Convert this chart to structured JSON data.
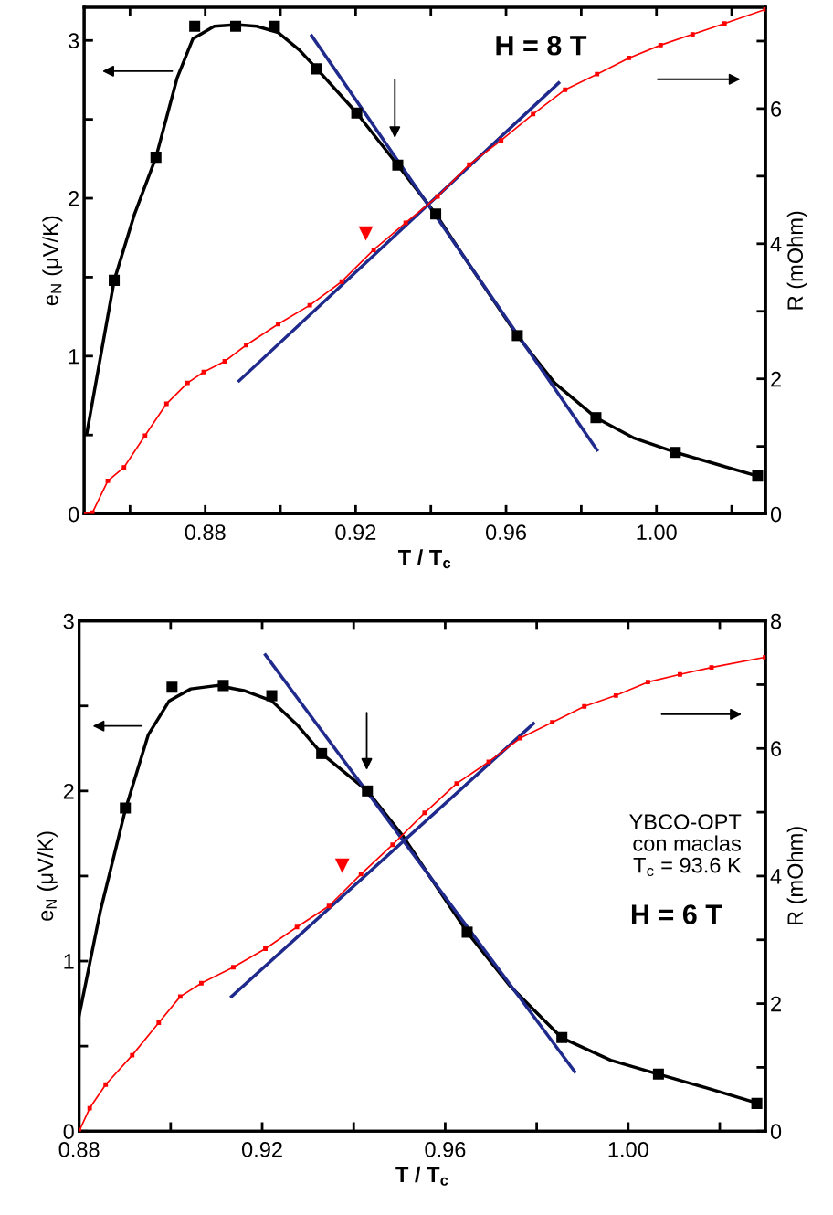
{
  "chart_data": [
    {
      "type": "line",
      "xlabel": "T / T$_{c}$",
      "ylabel": "e$_{N}$ (μV/K)",
      "y2label": "R (mOhm)",
      "annotations": [
        "H = 8 T"
      ],
      "xlim": [
        0.8478,
        1.029
      ],
      "ylim": [
        0,
        3.21
      ],
      "y2lim": [
        0,
        7.5
      ],
      "xticks": [
        {
          "value": 0.86,
          "label": null
        },
        {
          "value": 0.88,
          "label": "0.88"
        },
        {
          "value": 0.9,
          "label": null
        },
        {
          "value": 0.92,
          "label": "0.92"
        },
        {
          "value": 0.94,
          "label": null
        },
        {
          "value": 0.96,
          "label": "0.96"
        },
        {
          "value": 0.98,
          "label": null
        },
        {
          "value": 1.0,
          "label": "1.00"
        },
        {
          "value": 1.02,
          "label": null
        }
      ],
      "yticks": [
        0,
        {
          "value": 0.5,
          "label": null
        },
        1,
        {
          "value": 1.5,
          "label": null
        },
        2,
        {
          "value": 2.5,
          "label": null
        },
        3
      ],
      "y2ticks": [
        0,
        {
          "value": 1,
          "label": null
        },
        2,
        {
          "value": 3,
          "label": null
        },
        4,
        {
          "value": 5,
          "label": null
        },
        6,
        {
          "value": 7,
          "label": null
        }
      ],
      "series": [
        {
          "type": "scatter",
          "marker": "square",
          "color": "#000000",
          "x": [
            0.8558,
            0.8669,
            0.8772,
            0.8881,
            0.8984,
            0.9097,
            0.9203,
            0.9312,
            0.9413,
            0.963,
            0.9839,
            1.005,
            1.0269
          ],
          "values": [
            1.48,
            2.26,
            3.09,
            3.09,
            3.09,
            2.82,
            2.54,
            2.21,
            1.9,
            1.13,
            0.61,
            0.39,
            0.24
          ]
        },
        {
          "marker": "none",
          "color": "#000000",
          "x": [
            0.8485,
            0.8558,
            0.8612,
            0.8669,
            0.8725,
            0.8767,
            0.8824,
            0.8881,
            0.8937,
            0.8994,
            0.905,
            0.9097,
            0.9203,
            0.9312,
            0.9413,
            0.9502,
            0.963,
            0.9729,
            0.9839,
            0.9941,
            1.0051,
            1.0167,
            1.0269
          ],
          "values": [
            0.51,
            1.48,
            1.9,
            2.26,
            2.76,
            3.01,
            3.09,
            3.1,
            3.09,
            3.05,
            2.94,
            2.82,
            2.54,
            2.21,
            1.9,
            1.58,
            1.13,
            0.83,
            0.61,
            0.48,
            0.39,
            0.31,
            0.24
          ]
        },
        {
          "marker": "square",
          "color": "#ff0000",
          "axis": "y2",
          "x": [
            0.8478,
            0.85,
            0.8541,
            0.8584,
            0.864,
            0.8697,
            0.8753,
            0.8796,
            0.8852,
            0.8909,
            0.8994,
            0.9078,
            0.9163,
            0.9248,
            0.9333,
            0.9418,
            0.9502,
            0.9587,
            0.9672,
            0.9757,
            0.9842,
            0.9927,
            1.0011,
            1.0096,
            1.0181,
            1.029
          ],
          "values": [
            0,
            0.02,
            0.49,
            0.69,
            1.16,
            1.63,
            1.94,
            2.1,
            2.26,
            2.5,
            2.81,
            3.09,
            3.44,
            3.91,
            4.31,
            4.7,
            5.17,
            5.53,
            5.92,
            6.28,
            6.51,
            6.75,
            6.94,
            7.1,
            7.26,
            7.47
          ]
        },
        {
          "marker": "none",
          "color": "#1f2a8c",
          "x": [
            0.9083,
            0.9842
          ],
          "values": [
            3.03,
            0.405
          ]
        },
        {
          "marker": "none",
          "color": "#1f2a8c",
          "axis": "y2",
          "x": [
            0.889,
            0.974
          ],
          "values": [
            1.97,
            6.38
          ]
        },
        {
          "type": "scatter",
          "marker": "triangle",
          "color": "#ff0000",
          "axis": "y2",
          "x": [
            0.9227
          ],
          "values": [
            4.15
          ]
        }
      ]
    },
    {
      "type": "line",
      "xlabel": "T / T$_{c}$",
      "ylabel": "e$_{N}$ (μV/K)",
      "y2label": "R (mOhm)",
      "annotations": [
        "YBCO-OPT\ncon maclas\nT$_{c}$ = 93.6 K",
        "H = 6 T"
      ],
      "xlim": [
        0.88,
        1.03
      ],
      "ylim": [
        0,
        3
      ],
      "y2lim": [
        0,
        8
      ],
      "xticks": [
        {
          "value": 0.88,
          "label": "0.88"
        },
        {
          "value": 0.9,
          "label": null
        },
        {
          "value": 0.92,
          "label": "0.92"
        },
        {
          "value": 0.94,
          "label": null
        },
        {
          "value": 0.96,
          "label": "0.96"
        },
        {
          "value": 0.98,
          "label": null
        },
        {
          "value": 1.0,
          "label": "1.00"
        },
        {
          "value": 1.02,
          "label": null
        }
      ],
      "yticks": [
        0,
        {
          "value": 0.5,
          "label": null
        },
        1,
        {
          "value": 1.5,
          "label": null
        },
        2,
        {
          "value": 2.5,
          "label": null
        },
        3
      ],
      "y2ticks": [
        0,
        {
          "value": 1,
          "label": null
        },
        2,
        {
          "value": 3,
          "label": null
        },
        4,
        {
          "value": 5,
          "label": null
        },
        6,
        {
          "value": 7,
          "label": null
        },
        8
      ],
      "series": [
        {
          "type": "scatter",
          "marker": "square",
          "color": "#000000",
          "x": [
            0.8901,
            0.9003,
            0.9115,
            0.9221,
            0.933,
            0.943,
            0.9648,
            0.9855,
            1.0066,
            1.0281
          ],
          "values": [
            1.9,
            2.61,
            2.62,
            2.56,
            2.22,
            2.0,
            1.17,
            0.55,
            0.335,
            0.163
          ]
        },
        {
          "marker": "none",
          "color": "#000000",
          "x": [
            0.88,
            0.8846,
            0.8901,
            0.8951,
            0.8997,
            0.9044,
            0.9102,
            0.916,
            0.9221,
            0.9276,
            0.933,
            0.943,
            0.9509,
            0.9578,
            0.9648,
            0.9741,
            0.9855,
            0.9962,
            1.0066,
            1.0171,
            1.0281
          ],
          "values": [
            0.68,
            1.29,
            1.89,
            2.33,
            2.53,
            2.6,
            2.62,
            2.59,
            2.53,
            2.39,
            2.22,
            2.0,
            1.73,
            1.45,
            1.17,
            0.855,
            0.548,
            0.417,
            0.335,
            0.254,
            0.166
          ]
        },
        {
          "marker": "square",
          "color": "#ff0000",
          "axis": "y2",
          "x": [
            0.88,
            0.8823,
            0.8858,
            0.8916,
            0.8974,
            0.9021,
            0.9067,
            0.9137,
            0.9207,
            0.9276,
            0.9346,
            0.9416,
            0.9485,
            0.9555,
            0.9625,
            0.9695,
            0.9764,
            0.9834,
            0.9904,
            0.9973,
            1.0043,
            1.0113,
            1.0182,
            1.0299
          ],
          "values": [
            0,
            0.36,
            0.73,
            1.19,
            1.7,
            2.11,
            2.32,
            2.57,
            2.86,
            3.2,
            3.53,
            4.03,
            4.49,
            4.99,
            5.45,
            5.79,
            6.16,
            6.41,
            6.66,
            6.83,
            7.04,
            7.16,
            7.27,
            7.43
          ]
        },
        {
          "marker": "none",
          "color": "#1f2a8c",
          "x": [
            0.9207,
            0.9883
          ],
          "values": [
            2.8,
            0.35
          ]
        },
        {
          "marker": "none",
          "color": "#1f2a8c",
          "axis": "y2",
          "x": [
            0.9133,
            0.9793
          ],
          "values": [
            2.11,
            6.39
          ]
        },
        {
          "type": "scatter",
          "marker": "triangle",
          "color": "#ff0000",
          "axis": "y2",
          "x": [
            0.9375
          ],
          "values": [
            4.16
          ]
        }
      ]
    }
  ]
}
